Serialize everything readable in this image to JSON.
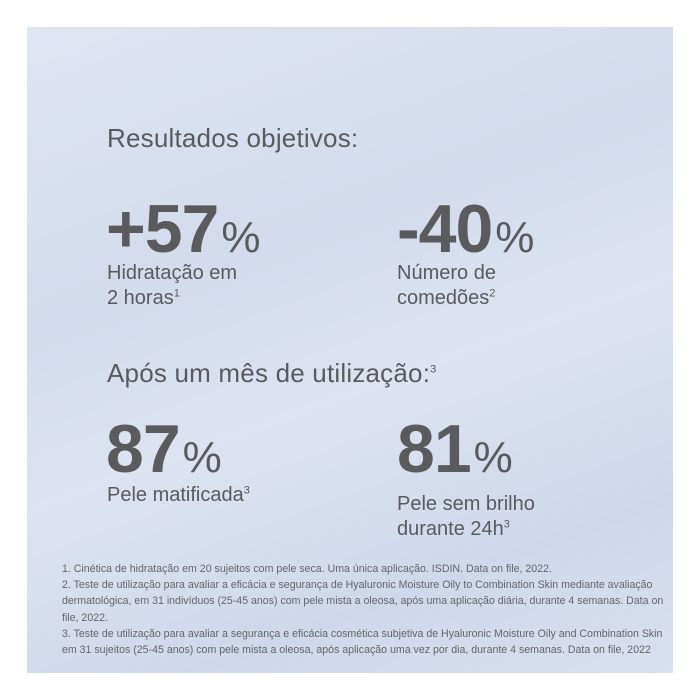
{
  "section1": {
    "heading": "Resultados objetivos:",
    "stats": [
      {
        "value": "+57",
        "unit": "%",
        "label_line1": "Hidratação em",
        "label_line2": "2 horas",
        "note": "1"
      },
      {
        "value": "-40",
        "unit": "%",
        "label_line1": "Número de",
        "label_line2": "comedões",
        "note": "2"
      }
    ]
  },
  "section2": {
    "heading": "Após um mês de utilização:",
    "heading_note": "3",
    "stats": [
      {
        "value": "87",
        "unit": "%",
        "label_line1": "Pele matificada",
        "note": "3"
      },
      {
        "value": "81",
        "unit": "%",
        "label_line1": "Pele sem brilho",
        "label_line2": "durante 24h",
        "note": "3"
      }
    ]
  },
  "footnotes": [
    "1. Cinética de hidratação em 20 sujeitos com pele seca. Uma única aplicação. ISDIN. Data on file, 2022.",
    "2. Teste de utilização para avaliar a eficácia e segurança de Hyaluronic Moisture Oily to Combination Skin mediante avaliação dermatológica, em 31 indivíduos (25-45 anos)  com pele mista a oleosa, após uma aplicação diária, durante 4 semanas. Data on file, 2022.",
    "3. Teste de utilização para avaliar a segurança e eficácia cosmética subjetiva de Hyaluronic Moisture Oily and Combination Skin em 31 sujeitos (25-45 anos) com pele mista a oleosa, após aplicação uma vez por dia, durante 4 semanas. Data on file, 2022"
  ],
  "colors": {
    "text": "#5b5b5d",
    "background": "#d8dfee",
    "border": "#ffffff"
  }
}
